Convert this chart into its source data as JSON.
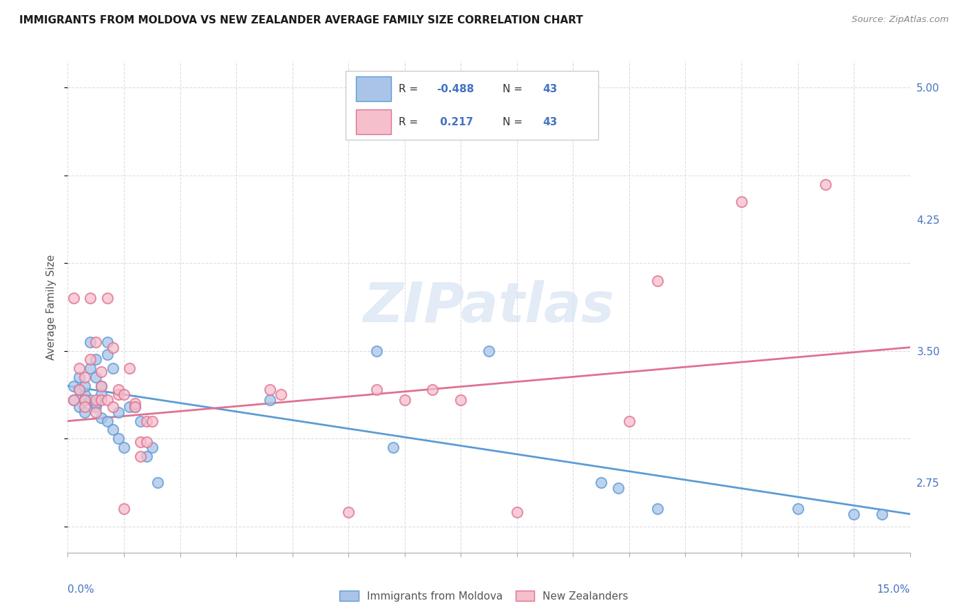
{
  "title": "IMMIGRANTS FROM MOLDOVA VS NEW ZEALANDER AVERAGE FAMILY SIZE CORRELATION CHART",
  "source": "Source: ZipAtlas.com",
  "ylabel": "Average Family Size",
  "xlim": [
    0.0,
    0.15
  ],
  "ylim": [
    2.35,
    5.15
  ],
  "right_yticks": [
    2.75,
    3.5,
    4.25,
    5.0
  ],
  "right_yticklabels": [
    "2.75",
    "3.50",
    "4.25",
    "5.00"
  ],
  "legend_r_blue": "-0.488",
  "legend_r_pink": " 0.217",
  "legend_n": "43",
  "blue_fill_color": "#aac4e8",
  "pink_fill_color": "#f5bfcc",
  "blue_edge_color": "#5b9bd5",
  "pink_edge_color": "#e07090",
  "blue_line_color": "#5b9bd5",
  "pink_line_color": "#e07090",
  "text_blue_color": "#4472c4",
  "watermark_text": "ZIPatlas",
  "grid_color": "#dddddd",
  "background_color": "#ffffff",
  "legend_label_blue": "Immigrants from Moldova",
  "legend_label_pink": "New Zealanders",
  "blue_scatter_x": [
    0.001,
    0.001,
    0.002,
    0.002,
    0.002,
    0.003,
    0.003,
    0.003,
    0.003,
    0.004,
    0.004,
    0.004,
    0.005,
    0.005,
    0.005,
    0.005,
    0.006,
    0.006,
    0.006,
    0.007,
    0.007,
    0.007,
    0.008,
    0.008,
    0.009,
    0.009,
    0.01,
    0.011,
    0.012,
    0.013,
    0.014,
    0.015,
    0.016,
    0.036,
    0.055,
    0.058,
    0.075,
    0.095,
    0.098,
    0.105,
    0.13,
    0.14,
    0.145
  ],
  "blue_scatter_y": [
    3.22,
    3.3,
    3.18,
    3.28,
    3.35,
    3.25,
    3.15,
    3.3,
    3.22,
    3.4,
    3.22,
    3.55,
    3.18,
    3.45,
    3.2,
    3.35,
    3.3,
    3.12,
    3.25,
    3.55,
    3.48,
    3.1,
    3.4,
    3.05,
    3.15,
    3.0,
    2.95,
    3.18,
    3.18,
    3.1,
    2.9,
    2.95,
    2.75,
    3.22,
    3.5,
    2.95,
    3.5,
    2.75,
    2.72,
    2.6,
    2.6,
    2.57,
    2.57
  ],
  "pink_scatter_x": [
    0.001,
    0.001,
    0.002,
    0.002,
    0.003,
    0.003,
    0.003,
    0.004,
    0.004,
    0.005,
    0.005,
    0.005,
    0.006,
    0.006,
    0.006,
    0.007,
    0.007,
    0.008,
    0.008,
    0.009,
    0.009,
    0.01,
    0.01,
    0.011,
    0.012,
    0.012,
    0.013,
    0.013,
    0.014,
    0.014,
    0.015,
    0.036,
    0.038,
    0.05,
    0.055,
    0.06,
    0.065,
    0.07,
    0.08,
    0.1,
    0.105,
    0.12,
    0.135
  ],
  "pink_scatter_y": [
    3.22,
    3.8,
    3.28,
    3.4,
    3.35,
    3.22,
    3.18,
    3.45,
    3.8,
    3.15,
    3.55,
    3.22,
    3.3,
    3.38,
    3.22,
    3.8,
    3.22,
    3.52,
    3.18,
    3.25,
    3.28,
    3.25,
    2.6,
    3.4,
    3.2,
    3.18,
    2.98,
    2.9,
    3.1,
    2.98,
    3.1,
    3.28,
    3.25,
    2.58,
    3.28,
    3.22,
    3.28,
    3.22,
    2.58,
    3.1,
    3.9,
    4.35,
    4.45
  ],
  "blue_trend_x": [
    0.0,
    0.15
  ],
  "blue_trend_y": [
    3.3,
    2.57
  ],
  "pink_trend_x": [
    0.0,
    0.15
  ],
  "pink_trend_y": [
    3.1,
    3.52
  ]
}
